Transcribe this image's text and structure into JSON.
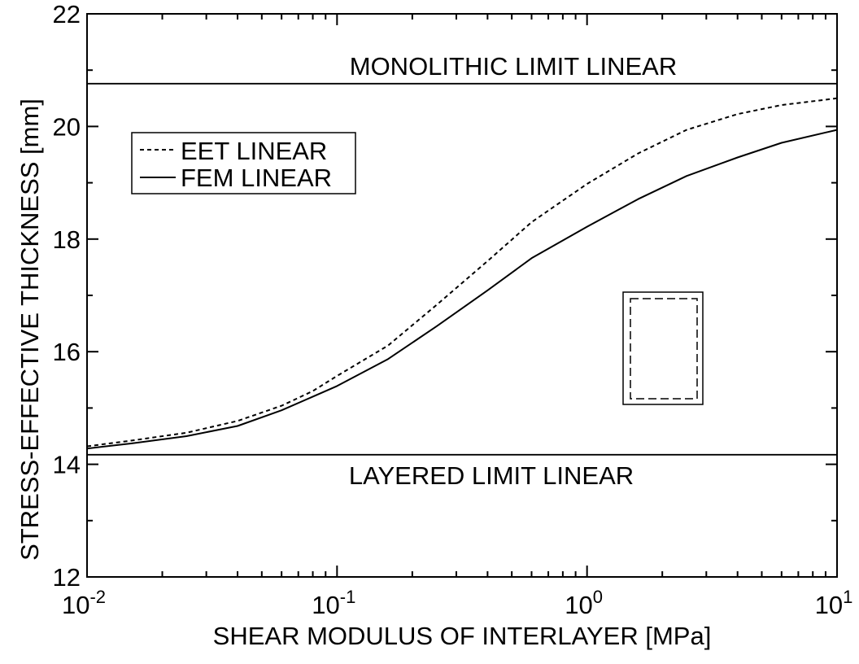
{
  "chart_data": {
    "type": "line",
    "xlabel": "SHEAR MODULUS OF INTERLAYER [MPa]",
    "ylabel": "STRESS-EFFECTIVE THICKNESS [mm]",
    "xscale": "log",
    "xlim": [
      0.01,
      10
    ],
    "ylim": [
      12,
      22
    ],
    "xticks": [
      {
        "value": 0.01,
        "base": "10",
        "exp": "-2"
      },
      {
        "value": 0.1,
        "base": "10",
        "exp": "-1"
      },
      {
        "value": 1,
        "base": "10",
        "exp": "0"
      },
      {
        "value": 10,
        "base": "10",
        "exp": "1"
      }
    ],
    "yticks": [
      {
        "value": 12,
        "label": "12"
      },
      {
        "value": 14,
        "label": "14"
      },
      {
        "value": 16,
        "label": "16"
      },
      {
        "value": 18,
        "label": "18"
      },
      {
        "value": 20,
        "label": "20"
      },
      {
        "value": 22,
        "label": "22"
      }
    ],
    "legend": {
      "position": "top-left",
      "boxed": true
    },
    "series": [
      {
        "name": "EET LINEAR",
        "style": "dashed",
        "x": [
          0.01,
          0.015,
          0.025,
          0.04,
          0.06,
          0.08,
          0.1,
          0.16,
          0.25,
          0.4,
          0.6,
          1.0,
          1.6,
          2.5,
          4,
          6,
          10
        ],
        "y": [
          14.32,
          14.42,
          14.56,
          14.77,
          15.04,
          15.3,
          15.57,
          16.11,
          16.83,
          17.61,
          18.3,
          18.98,
          19.52,
          19.94,
          20.22,
          20.38,
          20.5
        ]
      },
      {
        "name": "FEM LINEAR",
        "style": "solid",
        "x": [
          0.01,
          0.015,
          0.025,
          0.04,
          0.06,
          0.1,
          0.16,
          0.25,
          0.4,
          0.6,
          1.0,
          1.6,
          2.5,
          4,
          6,
          10
        ],
        "y": [
          14.28,
          14.37,
          14.5,
          14.68,
          14.96,
          15.39,
          15.87,
          16.45,
          17.09,
          17.66,
          18.22,
          18.71,
          19.12,
          19.45,
          19.71,
          19.94
        ]
      }
    ],
    "reference_lines": [
      {
        "label": "MONOLITHIC LIMIT LINEAR",
        "y": 20.76
      },
      {
        "label": "LAYERED LIMIT LINEAR",
        "y": 14.17
      }
    ]
  }
}
